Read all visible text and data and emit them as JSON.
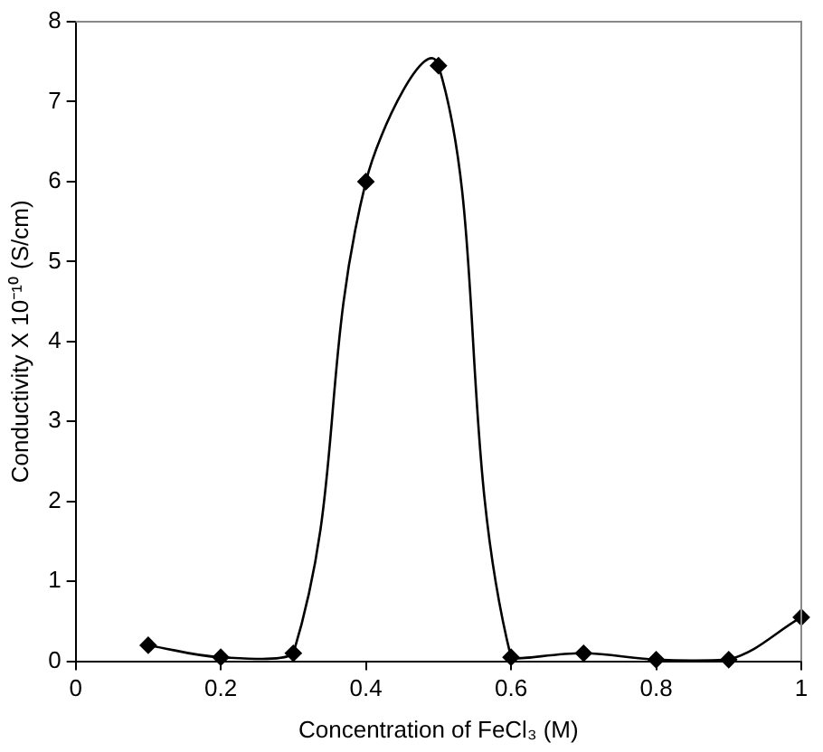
{
  "chart_data": {
    "type": "line",
    "xlabel": "Concentration of FeCl₃ (M)",
    "ylabel": "Conductivity X 10⁻¹⁰ (S/cm)",
    "x": [
      0.1,
      0.2,
      0.3,
      0.4,
      0.5,
      0.6,
      0.7,
      0.8,
      0.9,
      1.0
    ],
    "series": [
      {
        "color": "#000000",
        "values": [
          0.2,
          0.05,
          0.1,
          6.0,
          7.45,
          0.05,
          0.1,
          0.02,
          0.02,
          0.55
        ]
      }
    ],
    "xlim": [
      0,
      1
    ],
    "xticks": [
      0,
      0.2,
      0.4,
      0.6,
      0.8,
      1
    ],
    "ylim": [
      0,
      8
    ],
    "yticks": [
      0,
      1,
      2,
      3,
      4,
      5,
      6,
      7,
      8
    ],
    "grid": false,
    "legend": false,
    "marker": "diamond",
    "line_style": "solid"
  }
}
